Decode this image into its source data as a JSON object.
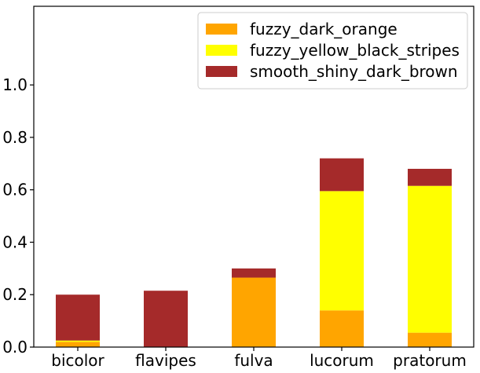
{
  "chart_data": {
    "type": "bar",
    "stacked": true,
    "categories": [
      "bicolor",
      "flavipes",
      "fulva",
      "lucorum",
      "pratorum"
    ],
    "series": [
      {
        "name": "fuzzy_dark_orange",
        "color": "#ffa500",
        "values": [
          0.02,
          0.0,
          0.265,
          0.14,
          0.055
        ]
      },
      {
        "name": "fuzzy_yellow_black_stripes",
        "color": "#ffff00",
        "values": [
          0.005,
          0.0,
          0.0,
          0.455,
          0.56
        ]
      },
      {
        "name": "smooth_shiny_dark_brown",
        "color": "#a52a2a",
        "values": [
          0.175,
          0.215,
          0.035,
          0.125,
          0.065
        ]
      }
    ],
    "ylim": [
      0,
      1.3
    ],
    "yticks": [
      "0.0",
      "0.2",
      "0.4",
      "0.6",
      "0.8",
      "1.0"
    ],
    "legend_position": "top-right",
    "grid": false
  }
}
